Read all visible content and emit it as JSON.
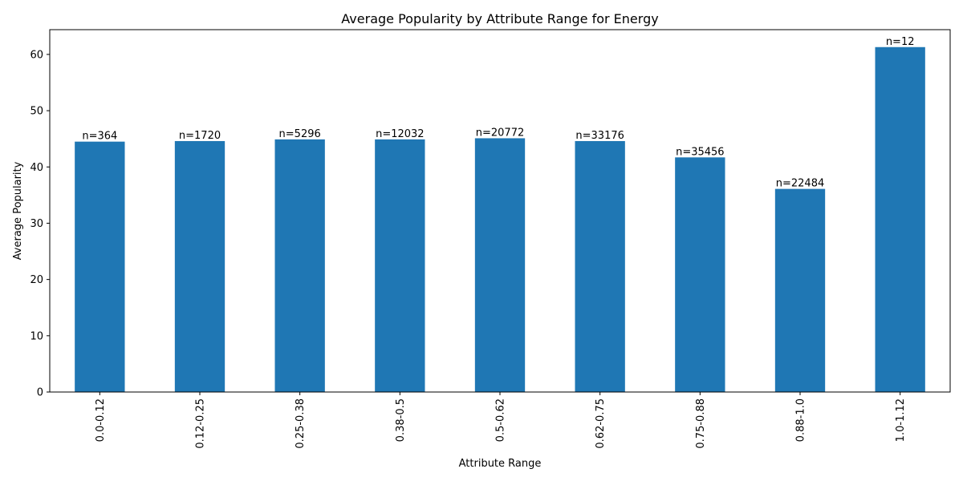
{
  "chart_data": {
    "type": "bar",
    "title": "Average Popularity by Attribute Range for Energy",
    "xlabel": "Attribute Range",
    "ylabel": "Average Popularity",
    "categories": [
      "0.0-0.12",
      "0.12-0.25",
      "0.25-0.38",
      "0.38-0.5",
      "0.5-0.62",
      "0.62-0.75",
      "0.75-0.88",
      "0.88-1.0",
      "1.0-1.12"
    ],
    "values": [
      44.5,
      44.6,
      44.9,
      44.9,
      45.1,
      44.6,
      41.7,
      36.1,
      61.3
    ],
    "data_labels": [
      "n=364",
      "n=1720",
      "n=5296",
      "n=12032",
      "n=20772",
      "n=33176",
      "n=35456",
      "n=22484",
      "n=12"
    ],
    "ylim": [
      0,
      64.4
    ],
    "yticks": [
      0,
      10,
      20,
      30,
      40,
      50,
      60
    ],
    "grid": false,
    "bar_color": "#1f77b4"
  }
}
